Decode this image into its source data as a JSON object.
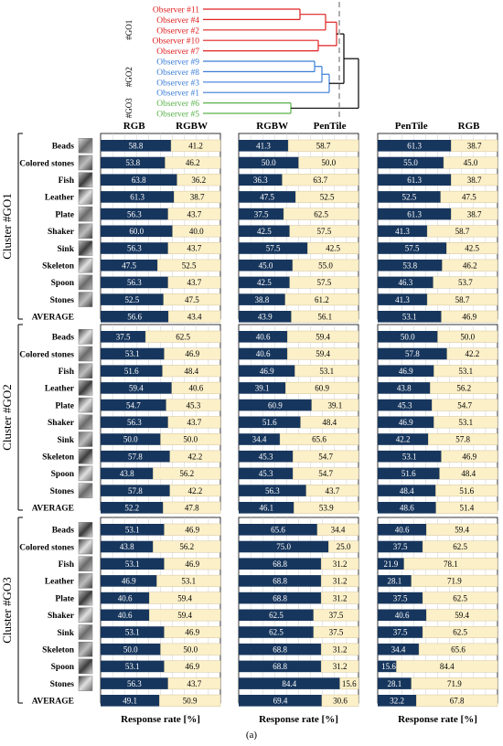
{
  "caption": "(a)",
  "colors": {
    "navy": "#17365d",
    "cream": "#fcf0c9",
    "red": "#e02020",
    "blue": "#3b7dd8",
    "green": "#5ab24a",
    "black": "#000000",
    "gray": "#b0b0b0"
  },
  "dendrogram": {
    "groups": [
      {
        "label": "#GO1",
        "color": "red",
        "observers": [
          "Observer #11",
          "Observer #4",
          "Observer #2",
          "Observer #10",
          "Observer #7"
        ]
      },
      {
        "label": "#GO2",
        "color": "blue",
        "observers": [
          "Observer #9",
          "Observer #8",
          "Observer #3",
          "Observer #1"
        ]
      },
      {
        "label": "#GO3",
        "color": "green",
        "observers": [
          "Observer #6",
          "Observer #5"
        ]
      }
    ]
  },
  "chart_data": {
    "type": "bar",
    "stacked": true,
    "horizontal": true,
    "xlabel": "Response rate [%]",
    "xlim": [
      0,
      100
    ],
    "categories": [
      "Beads",
      "Colored stones",
      "Fish",
      "Leather",
      "Plate",
      "Shaker",
      "Sink",
      "Skeleton",
      "Spoon",
      "Stones",
      "AVERAGE"
    ],
    "comparisons": [
      {
        "left": "RGB",
        "right": "RGBW"
      },
      {
        "left": "RGBW",
        "right": "PenTile"
      },
      {
        "left": "PenTile",
        "right": "RGB"
      }
    ],
    "clusters": [
      {
        "name": "Cluster #GO1",
        "panels": [
          {
            "left": [
              58.8,
              53.8,
              63.8,
              61.3,
              56.3,
              60.0,
              56.3,
              47.5,
              56.3,
              52.5,
              56.6
            ],
            "right": [
              41.2,
              46.2,
              36.2,
              38.7,
              43.7,
              40.0,
              43.7,
              52.5,
              43.7,
              47.5,
              43.4
            ]
          },
          {
            "left": [
              41.3,
              50.0,
              36.3,
              47.5,
              37.5,
              42.5,
              57.5,
              45.0,
              42.5,
              38.8,
              43.9
            ],
            "right": [
              58.7,
              50.0,
              63.7,
              52.5,
              62.5,
              57.5,
              42.5,
              55.0,
              57.5,
              61.2,
              56.1
            ]
          },
          {
            "left": [
              61.3,
              55.0,
              61.3,
              52.5,
              61.3,
              41.3,
              57.5,
              53.8,
              46.3,
              41.3,
              53.1
            ],
            "right": [
              38.7,
              45.0,
              38.7,
              47.5,
              38.7,
              58.7,
              42.5,
              46.2,
              53.7,
              58.7,
              46.9
            ]
          }
        ]
      },
      {
        "name": "Cluster #GO2",
        "panels": [
          {
            "left": [
              37.5,
              53.1,
              51.6,
              59.4,
              54.7,
              56.3,
              50.0,
              57.8,
              43.8,
              57.8,
              52.2
            ],
            "right": [
              62.5,
              46.9,
              48.4,
              40.6,
              45.3,
              43.7,
              50.0,
              42.2,
              56.2,
              42.2,
              47.8
            ]
          },
          {
            "left": [
              40.6,
              40.6,
              46.9,
              39.1,
              60.9,
              51.6,
              34.4,
              45.3,
              45.3,
              56.3,
              46.1
            ],
            "right": [
              59.4,
              59.4,
              53.1,
              60.9,
              39.1,
              48.4,
              65.6,
              54.7,
              54.7,
              43.7,
              53.9
            ]
          },
          {
            "left": [
              50.0,
              57.8,
              46.9,
              43.8,
              45.3,
              46.9,
              42.2,
              53.1,
              51.6,
              48.4,
              48.6
            ],
            "right": [
              50.0,
              42.2,
              53.1,
              56.2,
              54.7,
              53.1,
              57.8,
              46.9,
              48.4,
              51.6,
              51.4
            ]
          }
        ]
      },
      {
        "name": "Cluster #GO3",
        "panels": [
          {
            "left": [
              53.1,
              43.8,
              53.1,
              46.9,
              40.6,
              40.6,
              53.1,
              50.0,
              53.1,
              56.3,
              49.1
            ],
            "right": [
              46.9,
              56.2,
              46.9,
              53.1,
              59.4,
              59.4,
              46.9,
              50.0,
              46.9,
              43.7,
              50.9
            ]
          },
          {
            "left": [
              65.6,
              75.0,
              68.8,
              68.8,
              68.8,
              62.5,
              62.5,
              68.8,
              68.8,
              84.4,
              69.4
            ],
            "right": [
              34.4,
              25.0,
              31.2,
              31.2,
              31.2,
              37.5,
              37.5,
              31.2,
              31.2,
              15.6,
              30.6
            ]
          },
          {
            "left": [
              40.6,
              37.5,
              21.9,
              28.1,
              37.5,
              40.6,
              37.5,
              34.4,
              15.6,
              28.1,
              32.2
            ],
            "right": [
              59.4,
              62.5,
              78.1,
              71.9,
              62.5,
              59.4,
              62.5,
              65.6,
              84.4,
              71.9,
              67.8
            ]
          }
        ]
      }
    ]
  }
}
